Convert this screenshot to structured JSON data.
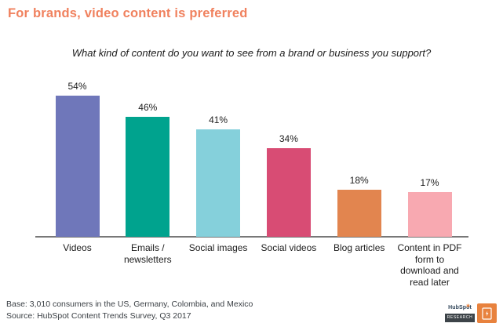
{
  "header": {
    "title": "For brands, video content is preferred",
    "subtitle": "What kind of content do you want to see from a brand or business you support?"
  },
  "chart_data": {
    "type": "bar",
    "categories": [
      "Videos",
      "Emails / newsletters",
      "Social images",
      "Social videos",
      "Blog articles",
      "Content in PDF form to download and read later"
    ],
    "values": [
      54,
      46,
      41,
      34,
      18,
      17
    ],
    "value_labels": [
      "54%",
      "46%",
      "41%",
      "34%",
      "18%",
      "17%"
    ],
    "bar_colors": [
      "#6F77BA",
      "#00A38E",
      "#85D0DB",
      "#D84C74",
      "#E2854F",
      "#F8A9B1"
    ],
    "title": "For brands, video content is preferred",
    "xlabel": "",
    "ylabel": "",
    "ylim": [
      0,
      60
    ],
    "grid": false,
    "legend": false,
    "axis_color": "#787878",
    "label_color": "#1d1d1d"
  },
  "footer": {
    "base": "Base: 3,010 consumers in the US, Germany, Colombia, and Mexico",
    "source": "Source: HubSpot Content Trends Survey, Q3 2017"
  },
  "logo": {
    "brand": "HubSpot",
    "sub_label": "RESEARCH",
    "accent_color": "#E8823E"
  },
  "title_color": "#F0815E"
}
